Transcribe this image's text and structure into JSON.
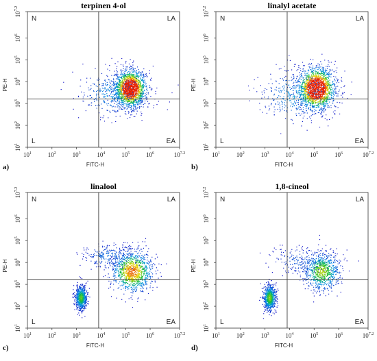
{
  "chart_data": [
    {
      "type": "scatter",
      "title": "terpinen 4-ol",
      "panel_label": "a)",
      "xlabel": "FITC-H",
      "ylabel": "PE-H",
      "xscale": "log",
      "yscale": "log",
      "xlim": [
        10,
        15848932
      ],
      "ylim": [
        10,
        15848932
      ],
      "x_ticks": [
        "10^1",
        "10^2",
        "10^3",
        "10^4",
        "10^5",
        "10^6",
        "10^7.2"
      ],
      "y_ticks": [
        "10^1",
        "10^2",
        "10^3",
        "10^4",
        "10^5",
        "10^6",
        "10^7.2"
      ],
      "gate": {
        "x": 8000,
        "y": 1600
      },
      "quadrant_labels": [
        "N",
        "LA",
        "L",
        "EA"
      ],
      "grid": false,
      "clusters": [
        {
          "x": 150000,
          "y": 5000,
          "sx_log": 0.32,
          "sy_log": 0.42,
          "n": 1800
        },
        {
          "x": 30000,
          "y": 3000,
          "sx_log": 0.7,
          "sy_log": 0.55,
          "n": 350
        }
      ]
    },
    {
      "type": "scatter",
      "title": "linalyl acetate",
      "panel_label": "b)",
      "xlabel": "FITC-H",
      "ylabel": "PE-H",
      "xscale": "log",
      "yscale": "log",
      "xlim": [
        10,
        15848932
      ],
      "ylim": [
        10,
        15848932
      ],
      "x_ticks": [
        "10^1",
        "10^2",
        "10^3",
        "10^4",
        "10^5",
        "10^6",
        "10^7.2"
      ],
      "y_ticks": [
        "10^1",
        "10^2",
        "10^3",
        "10^4",
        "10^5",
        "10^6",
        "10^7.2"
      ],
      "gate": {
        "x": 8000,
        "y": 1600
      },
      "quadrant_labels": [
        "N",
        "LA",
        "L",
        "EA"
      ],
      "grid": false,
      "clusters": [
        {
          "x": 120000,
          "y": 5000,
          "sx_log": 0.38,
          "sy_log": 0.48,
          "n": 1800
        },
        {
          "x": 20000,
          "y": 2500,
          "sx_log": 0.75,
          "sy_log": 0.6,
          "n": 400
        }
      ]
    },
    {
      "type": "scatter",
      "title": "linalool",
      "panel_label": "c)",
      "xlabel": "FITC-H",
      "ylabel": "PE-H",
      "xscale": "log",
      "yscale": "log",
      "xlim": [
        10,
        15848932
      ],
      "ylim": [
        10,
        15848932
      ],
      "x_ticks": [
        "10^1",
        "10^2",
        "10^3",
        "10^4",
        "10^5",
        "10^6",
        "10^7.2"
      ],
      "y_ticks": [
        "10^1",
        "10^2",
        "10^3",
        "10^4",
        "10^5",
        "10^6",
        "10^7.2"
      ],
      "gate": {
        "x": 8000,
        "y": 1600
      },
      "quadrant_labels": [
        "N",
        "LA",
        "L",
        "EA"
      ],
      "grid": false,
      "clusters": [
        {
          "x": 1500,
          "y": 250,
          "sx_log": 0.12,
          "sy_log": 0.28,
          "n": 700
        },
        {
          "x": 180000,
          "y": 4000,
          "sx_log": 0.42,
          "sy_log": 0.48,
          "n": 1100
        },
        {
          "x": 20000,
          "y": 20000,
          "sx_log": 0.55,
          "sy_log": 0.3,
          "n": 250
        }
      ]
    },
    {
      "type": "scatter",
      "title": "1,8-cineol",
      "panel_label": "d)",
      "xlabel": "FITC-H",
      "ylabel": "PE-H",
      "xscale": "log",
      "yscale": "log",
      "xlim": [
        10,
        15848932
      ],
      "ylim": [
        10,
        15848932
      ],
      "x_ticks": [
        "10^1",
        "10^2",
        "10^3",
        "10^4",
        "10^5",
        "10^6",
        "10^7.2"
      ],
      "y_ticks": [
        "10^1",
        "10^2",
        "10^3",
        "10^4",
        "10^5",
        "10^6",
        "10^7.2"
      ],
      "gate": {
        "x": 8000,
        "y": 1600
      },
      "quadrant_labels": [
        "N",
        "LA",
        "L",
        "EA"
      ],
      "grid": false,
      "clusters": [
        {
          "x": 1500,
          "y": 250,
          "sx_log": 0.13,
          "sy_log": 0.3,
          "n": 750
        },
        {
          "x": 200000,
          "y": 4000,
          "sx_log": 0.38,
          "sy_log": 0.45,
          "n": 800
        },
        {
          "x": 30000,
          "y": 12000,
          "sx_log": 0.6,
          "sy_log": 0.35,
          "n": 200
        }
      ]
    }
  ]
}
